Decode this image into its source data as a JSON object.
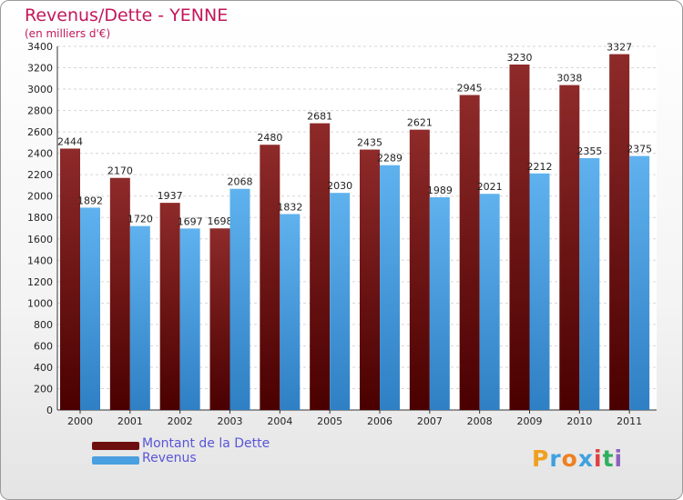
{
  "header": {
    "title": "Revenus/Dette - YENNE",
    "subtitle": "(en milliers d'€)"
  },
  "chart_data": {
    "type": "bar",
    "title": "Revenus/Dette - YENNE",
    "subtitle": "(en milliers d'€)",
    "xlabel": "",
    "ylabel": "",
    "ylim": [
      0,
      3400
    ],
    "yticks": [
      0,
      200,
      400,
      600,
      800,
      1000,
      1200,
      1400,
      1600,
      1800,
      2000,
      2200,
      2400,
      2600,
      2800,
      3000,
      3200,
      3400
    ],
    "grid": true,
    "legend_position": "bottom-left",
    "categories": [
      "2000",
      "2001",
      "2002",
      "2003",
      "2004",
      "2005",
      "2006",
      "2007",
      "2008",
      "2009",
      "2010",
      "2011"
    ],
    "series": [
      {
        "name": "Montant de la Dette",
        "color": "#7b1a1a",
        "values": [
          2444,
          2170,
          1937,
          1698,
          2480,
          2681,
          2435,
          2621,
          2945,
          3230,
          3038,
          3327
        ],
        "labels": [
          "2444",
          "2170",
          "1937",
          "1698",
          "2480",
          "2681",
          "2435",
          "2621",
          "2945",
          "3230",
          "3038",
          "3327"
        ]
      },
      {
        "name": "Revenus",
        "color": "#4ba3e3",
        "values": [
          1892,
          1720,
          1697,
          2068,
          1832,
          2030,
          2289,
          1989,
          2021,
          2212,
          2355,
          2375
        ],
        "labels": [
          "1892",
          "1720",
          "1697",
          "2068",
          "1832",
          "2030",
          "2289",
          "1989",
          "2021",
          "2212",
          "2355",
          "2375"
        ]
      }
    ]
  },
  "legend": {
    "items": [
      {
        "label": "Montant de la Dette",
        "color": "#6e0f0f"
      },
      {
        "label": "Revenus",
        "color": "#4a9fe0"
      }
    ]
  },
  "logo": {
    "letters": [
      "P",
      "r",
      "o",
      "x",
      "i",
      "t",
      "i"
    ],
    "colors": [
      "#f0a020",
      "#3fa0e0",
      "#f08020",
      "#3fa0e0",
      "#e04040",
      "#2fb060",
      "#9060c0"
    ]
  }
}
